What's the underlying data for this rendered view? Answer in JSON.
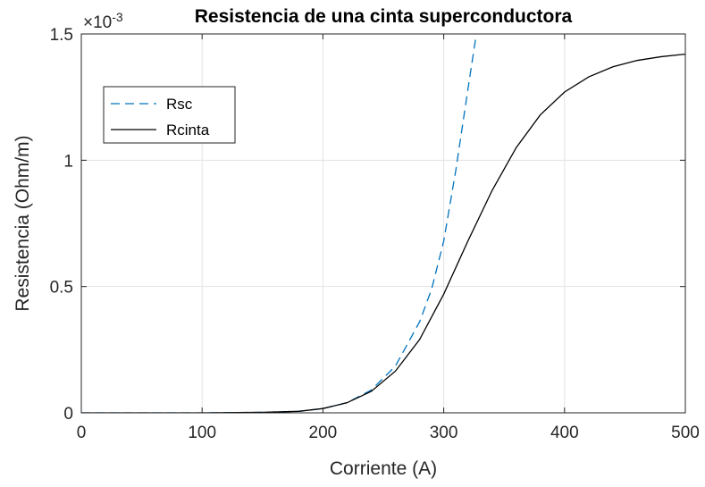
{
  "chart_data": {
    "type": "line",
    "title": "Resistencia de una cinta superconductora",
    "exponent_label": "×10",
    "exponent_power": "-3",
    "xlabel": "Corriente (A)",
    "ylabel": "Resistencia (Ohm/m)",
    "xlim": [
      0,
      500
    ],
    "ylim": [
      0,
      0.0015
    ],
    "xticks": [
      0,
      100,
      200,
      300,
      400,
      500
    ],
    "xtick_labels": [
      "0",
      "100",
      "200",
      "300",
      "400",
      "500"
    ],
    "yticks": [
      0,
      0.0005,
      0.001,
      0.0015
    ],
    "ytick_labels": [
      "0",
      "0.5",
      "1",
      "1.5"
    ],
    "grid": true,
    "legend_position": "top-left",
    "series": [
      {
        "name": "Rsc",
        "style": "dashed",
        "color": "#0072BD",
        "x": [
          0,
          100,
          150,
          180,
          200,
          220,
          240,
          260,
          280,
          290,
          300,
          310,
          320,
          327
        ],
        "y": [
          0,
          0,
          2e-06,
          6e-06,
          1.7e-05,
          4e-05,
          9e-05,
          0.000185,
          0.00036,
          0.00049,
          0.00068,
          0.00096,
          0.00128,
          0.0015
        ]
      },
      {
        "name": "Rcinta",
        "style": "solid",
        "color": "#000000",
        "x": [
          0,
          100,
          150,
          180,
          200,
          220,
          240,
          260,
          280,
          300,
          320,
          340,
          360,
          380,
          400,
          420,
          440,
          460,
          480,
          500
        ],
        "y": [
          0,
          0,
          2e-06,
          6e-06,
          1.7e-05,
          4e-05,
          8.5e-05,
          0.000165,
          0.00029,
          0.00047,
          0.00068,
          0.00088,
          0.00105,
          0.00118,
          0.00127,
          0.00133,
          0.00137,
          0.001395,
          0.00141,
          0.00142
        ]
      }
    ]
  }
}
